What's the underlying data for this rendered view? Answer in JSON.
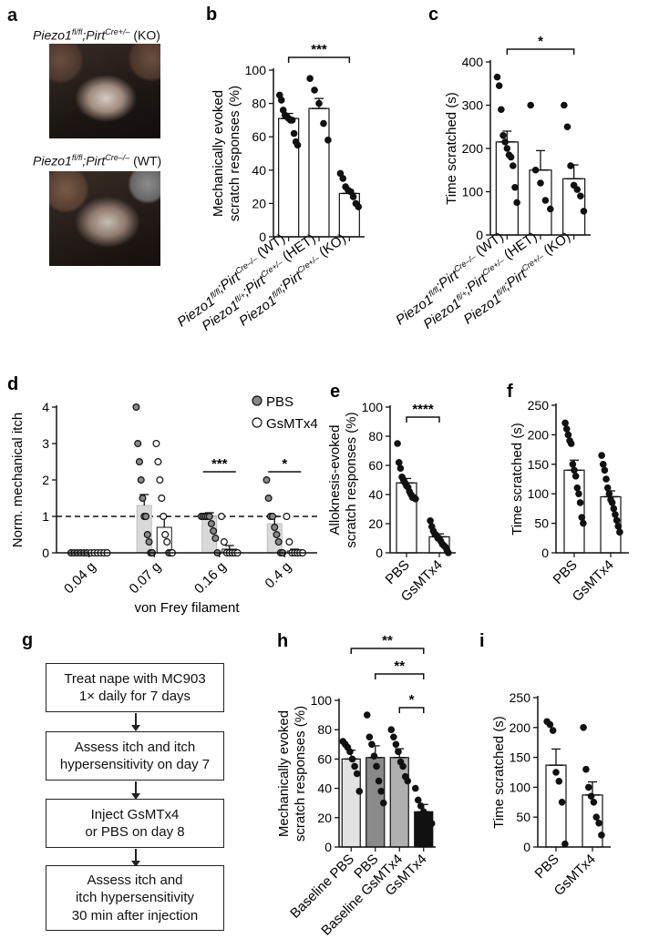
{
  "panels": {
    "a": {
      "letter": "a",
      "label_ko_gene": "Piezo1",
      "label_ko_sup1": "fl/fl",
      "label_ko_mid": ";Pirt",
      "label_ko_sup2": "Cre+/–",
      "label_ko_tail": " (KO)",
      "label_wt_gene": "Piezo1",
      "label_wt_sup1": "fl/fl",
      "label_wt_mid": ";Pirt",
      "label_wt_sup2": "Cre–/–",
      "label_wt_tail": " (WT)"
    },
    "b": {
      "letter": "b"
    },
    "c": {
      "letter": "c"
    },
    "d": {
      "letter": "d"
    },
    "e": {
      "letter": "e"
    },
    "f": {
      "letter": "f"
    },
    "g": {
      "letter": "g"
    },
    "h": {
      "letter": "h"
    },
    "i": {
      "letter": "i"
    }
  },
  "flowchart": {
    "steps": [
      "Treat nape with MC903\n1× daily for 7 days",
      "Assess itch and itch\nhypersensitivity on day 7",
      "Inject GsMTx4\nor PBS on day 8",
      "Assess itch and\nitch hypersensitivity\n30 min after injection"
    ]
  },
  "chart_data": [
    {
      "id": "b",
      "type": "bar",
      "ylabel": "Mechanically evoked\nscratch responses (%)",
      "ylim": [
        0,
        100
      ],
      "yticks": [
        0,
        20,
        40,
        60,
        80,
        100
      ],
      "categories": [
        {
          "gene": "Piezo1",
          "sup1": "fl/fl",
          "mid": ";Pirt",
          "sup2": "Cre–/–",
          "tail": " (WT)"
        },
        {
          "gene": "Piezo1",
          "sup1": "fl/+",
          "mid": ";Pirt",
          "sup2": "Cre+/–",
          "tail": " (HET)"
        },
        {
          "gene": "Piezo1",
          "sup1": "fl/fl",
          "mid": ";Pirt",
          "sup2": "Cre+/–",
          "tail": " (KO)"
        }
      ],
      "values": [
        71,
        77,
        26
      ],
      "errors": [
        3,
        6,
        2
      ],
      "points": [
        [
          85,
          82,
          76,
          73,
          72,
          71,
          70,
          70,
          62,
          57,
          55
        ],
        [
          95,
          88,
          80,
          68,
          58
        ],
        [
          38,
          35,
          30,
          28,
          27,
          24,
          20,
          18
        ]
      ],
      "significance": [
        {
          "from": 0,
          "to": 2,
          "label": "***"
        }
      ]
    },
    {
      "id": "c",
      "type": "bar",
      "ylabel": "Time scratched (s)",
      "ylim": [
        0,
        400
      ],
      "yticks": [
        0,
        100,
        200,
        300,
        400
      ],
      "categories": [
        {
          "gene": "Piezo1",
          "sup1": "fl/fl",
          "mid": ";Pirt",
          "sup2": "Cre–/–",
          "tail": " (WT)"
        },
        {
          "gene": "Piezo1",
          "sup1": "fl/+",
          "mid": ";Pirt",
          "sup2": "Cre+/–",
          "tail": " (HET)"
        },
        {
          "gene": "Piezo1",
          "sup1": "fl/fl",
          "mid": ";Pirt",
          "sup2": "Cre+/–",
          "tail": " (KO)"
        }
      ],
      "values": [
        215,
        150,
        130
      ],
      "errors": [
        25,
        45,
        32
      ],
      "points": [
        [
          365,
          345,
          290,
          230,
          215,
          200,
          185,
          180,
          160,
          110,
          75
        ],
        [
          300,
          150,
          120,
          80,
          60
        ],
        [
          300,
          250,
          160,
          115,
          105,
          90,
          55
        ]
      ],
      "significance": [
        {
          "from": 0,
          "to": 2,
          "label": "*"
        }
      ]
    },
    {
      "id": "d",
      "type": "bar",
      "ylabel": "Norm. mechanical itch",
      "xlabel": "von Frey filament",
      "ylim": [
        0,
        4
      ],
      "yticks": [
        0,
        1,
        2,
        3,
        4
      ],
      "categories": [
        "0.04 g",
        "0.07 g",
        "0.16 g",
        "0.4 g"
      ],
      "reference_line": 1,
      "series": [
        {
          "name": "PBS",
          "values": [
            0,
            1.3,
            1.0,
            0.8
          ],
          "errors": [
            0,
            0.3,
            0.1,
            0.2
          ],
          "points": [
            [
              0,
              0,
              0,
              0,
              0,
              0
            ],
            [
              4,
              3,
              2.5,
              2,
              1.5,
              1,
              1,
              0.5,
              0.3,
              0,
              0
            ],
            [
              1,
              1,
              1,
              1,
              1,
              0.8,
              0.6,
              0.4,
              0
            ],
            [
              2,
              1.5,
              1,
              1,
              0.7,
              0.5,
              0.3,
              0,
              0
            ]
          ]
        },
        {
          "name": "GsMTx4",
          "values": [
            0,
            0.7,
            0.1,
            0.05
          ],
          "errors": [
            0,
            0.3,
            0.1,
            0.05
          ],
          "points": [
            [
              0,
              0,
              0,
              0,
              0,
              0
            ],
            [
              3,
              2.5,
              2,
              1.5,
              1,
              0.5,
              0.3,
              0,
              0,
              0
            ],
            [
              1,
              0.3,
              0,
              0,
              0,
              0,
              0
            ],
            [
              1,
              0.3,
              0,
              0,
              0,
              0,
              0
            ]
          ]
        }
      ],
      "significance": [
        {
          "category": 2,
          "label": "***"
        },
        {
          "category": 3,
          "label": "*"
        }
      ]
    },
    {
      "id": "e",
      "type": "bar",
      "ylabel": "Alloknesis-evoked\nscratch responses (%)",
      "ylim": [
        0,
        100
      ],
      "yticks": [
        0,
        20,
        40,
        60,
        80,
        100
      ],
      "categories": [
        "PBS",
        "GsMTx4"
      ],
      "values": [
        48,
        11
      ],
      "errors": [
        3,
        2
      ],
      "points": [
        [
          75,
          62,
          58,
          52,
          50,
          48,
          46,
          45,
          42,
          40,
          38,
          38,
          37
        ],
        [
          22,
          18,
          15,
          13,
          12,
          10,
          10,
          8,
          6,
          5,
          4,
          2,
          0
        ]
      ],
      "significance": [
        {
          "from": 0,
          "to": 1,
          "label": "****"
        }
      ]
    },
    {
      "id": "f",
      "type": "bar",
      "ylabel": "Time scratched (s)",
      "ylim": [
        0,
        250
      ],
      "yticks": [
        0,
        50,
        100,
        150,
        200,
        250
      ],
      "categories": [
        "PBS",
        "GsMTx4"
      ],
      "values": [
        140,
        95
      ],
      "errors": [
        17,
        10
      ],
      "points": [
        [
          220,
          210,
          200,
          190,
          185,
          150,
          140,
          130,
          110,
          100,
          85,
          60,
          50
        ],
        [
          165,
          150,
          140,
          125,
          110,
          100,
          90,
          85,
          75,
          65,
          55,
          45,
          35
        ]
      ]
    },
    {
      "id": "h",
      "type": "bar",
      "ylabel": "Mechanically evoked\nscratch responses (%)",
      "ylim": [
        0,
        100
      ],
      "yticks": [
        0,
        20,
        40,
        60,
        80,
        100
      ],
      "categories": [
        "Baseline PBS",
        "PBS",
        "Baseline GsMTx4",
        "GsMTx4"
      ],
      "values": [
        60,
        61,
        61,
        24
      ],
      "errors": [
        6,
        8,
        6,
        5
      ],
      "bar_colors": [
        "#e2e2e2",
        "#8a8a8a",
        "#b0b0b0",
        "#111111"
      ],
      "points": [
        [
          72,
          70,
          68,
          65,
          60,
          55,
          50,
          38
        ],
        [
          90,
          75,
          70,
          62,
          55,
          45,
          38,
          30
        ],
        [
          80,
          75,
          70,
          65,
          58,
          55,
          48,
          45
        ],
        [
          40,
          32,
          28,
          24,
          20,
          18,
          16
        ]
      ],
      "significance": [
        {
          "from": 0,
          "to": 3,
          "label": "**"
        },
        {
          "from": 1,
          "to": 3,
          "label": "**"
        },
        {
          "from": 2,
          "to": 3,
          "label": "*"
        }
      ]
    },
    {
      "id": "i",
      "type": "bar",
      "ylabel": "Time scratched (s)",
      "ylim": [
        0,
        250
      ],
      "yticks": [
        0,
        50,
        100,
        150,
        200,
        250
      ],
      "categories": [
        "PBS",
        "GsMTx4"
      ],
      "values": [
        137,
        87
      ],
      "errors": [
        27,
        22
      ],
      "points": [
        [
          210,
          205,
          195,
          125,
          110,
          75,
          5
        ],
        [
          200,
          130,
          100,
          85,
          75,
          50,
          40,
          20
        ]
      ]
    }
  ]
}
